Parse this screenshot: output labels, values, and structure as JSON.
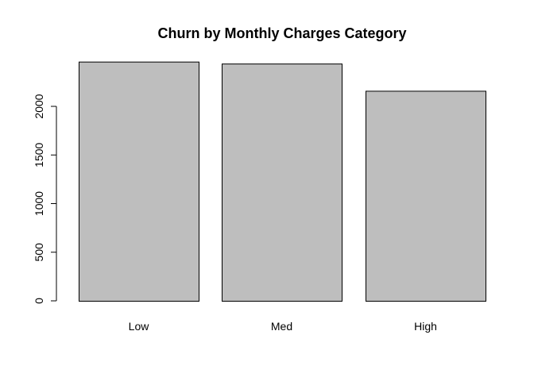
{
  "chart_data": {
    "type": "bar",
    "title": "Churn by Monthly Charges Category",
    "xlabel": "",
    "ylabel": "",
    "categories": [
      "Low",
      "Med",
      "High"
    ],
    "values": [
      2460,
      2440,
      2160
    ],
    "ylim": [
      0,
      2460
    ],
    "yticks": [
      0,
      500,
      1000,
      1500,
      2000
    ],
    "bar_color": "#bebebe",
    "grid": false,
    "legend": "none"
  }
}
